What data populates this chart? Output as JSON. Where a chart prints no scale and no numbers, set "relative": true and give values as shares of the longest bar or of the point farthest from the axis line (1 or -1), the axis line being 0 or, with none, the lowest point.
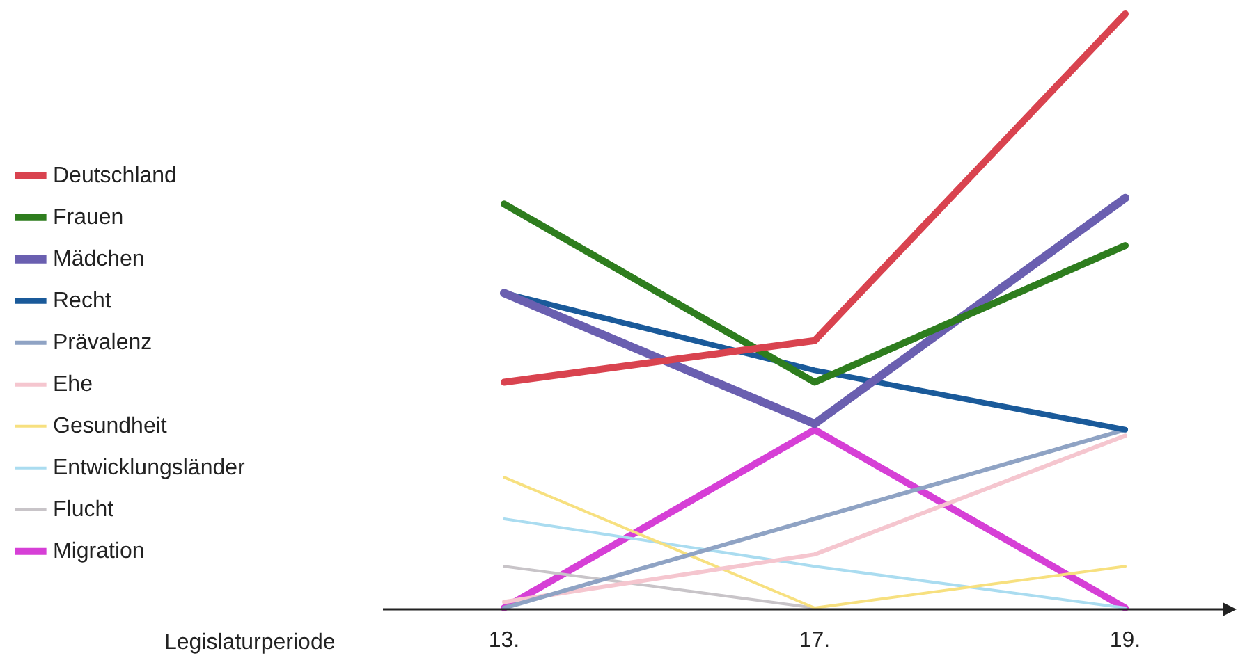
{
  "chart_data": {
    "type": "line",
    "relative": true,
    "xlabel": "Legislaturperiode",
    "categories": [
      "13.",
      "17.",
      "19."
    ],
    "legend": "left",
    "grid": false,
    "marker": "none",
    "series": [
      {
        "name": "Deutschland",
        "color": "#d9434f",
        "values": [
          0.38,
          0.45,
          1
        ]
      },
      {
        "name": "Frauen",
        "color": "#2e7d1e",
        "values": [
          0.68,
          0.38,
          0.61
        ]
      },
      {
        "name": "Mädchen",
        "color": "#6a5fb0",
        "values": [
          0.53,
          0.31,
          0.69
        ]
      },
      {
        "name": "Recht",
        "color": "#1a5a9a",
        "values": [
          0.53,
          0.4,
          0.3
        ]
      },
      {
        "name": "Prävalenz",
        "color": "#8fa3c4",
        "values": [
          0,
          0.15,
          0.3
        ]
      },
      {
        "name": "Ehe",
        "color": "#f5c6cf",
        "values": [
          0.01,
          0.09,
          0.29
        ]
      },
      {
        "name": "Gesundheit",
        "color": "#f7e07f",
        "values": [
          0.22,
          0,
          0.07
        ]
      },
      {
        "name": "Entwicklungsländer",
        "color": "#aadcf0",
        "values": [
          0.15,
          0.07,
          0
        ]
      },
      {
        "name": "Flucht",
        "color": "#c8c4c8",
        "values": [
          0.07,
          0,
          null
        ]
      },
      {
        "name": "Migration",
        "color": "#d63fd6",
        "values": [
          0,
          0.3,
          0
        ]
      }
    ]
  }
}
